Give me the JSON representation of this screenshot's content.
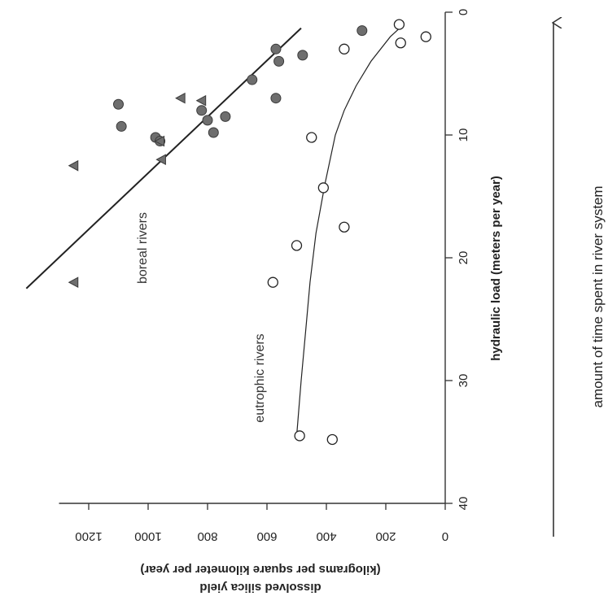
{
  "chart_data": {
    "type": "scatter",
    "orientation": "rotated 90 degrees clockwise",
    "x": {
      "label": "hydraulic load (meters per year)",
      "range": [
        0,
        40
      ],
      "ticks": [
        0,
        10,
        20,
        30,
        40
      ]
    },
    "y": {
      "label_line1": "dissolved silica yield",
      "label_line2": "(kilograms per square kilometer per year)",
      "range": [
        0,
        1300
      ],
      "ticks": [
        0,
        200,
        400,
        600,
        800,
        1000,
        1200
      ]
    },
    "series": [
      {
        "name": "boreal rivers",
        "marker": "filled-circle",
        "color": "#6e6e6e",
        "points": [
          [
            1.5,
            280
          ],
          [
            3.0,
            570
          ],
          [
            3.5,
            480
          ],
          [
            4.0,
            560
          ],
          [
            5.5,
            650
          ],
          [
            7.0,
            570
          ],
          [
            7.5,
            1100
          ],
          [
            8.0,
            820
          ],
          [
            8.5,
            740
          ],
          [
            8.8,
            800
          ],
          [
            9.3,
            1090
          ],
          [
            9.8,
            780
          ],
          [
            10.2,
            975
          ],
          [
            10.5,
            960
          ]
        ]
      },
      {
        "name": "boreal rivers",
        "marker": "filled-triangle",
        "color": "#6e6e6e",
        "points": [
          [
            7.0,
            890
          ],
          [
            7.2,
            820
          ],
          [
            10.5,
            960
          ],
          [
            12.0,
            955
          ],
          [
            12.5,
            1250
          ],
          [
            22.0,
            1250
          ]
        ]
      },
      {
        "name": "eutrophic rivers",
        "marker": "open-circle",
        "color": "#222222",
        "points": [
          [
            1.0,
            155
          ],
          [
            2.0,
            65
          ],
          [
            2.5,
            150
          ],
          [
            3.0,
            340
          ],
          [
            10.2,
            450
          ],
          [
            14.3,
            410
          ],
          [
            17.5,
            340
          ],
          [
            19.0,
            500
          ],
          [
            22.0,
            580
          ],
          [
            34.5,
            490
          ],
          [
            34.8,
            380
          ]
        ]
      }
    ],
    "fits": [
      {
        "series": "boreal rivers",
        "kind": "linear",
        "from": [
          1.3,
          485
        ],
        "to": [
          22.5,
          1410
        ]
      },
      {
        "series": "eutrophic rivers",
        "kind": "curve",
        "points": [
          [
            1.0,
            140
          ],
          [
            2.0,
            185
          ],
          [
            4.0,
            250
          ],
          [
            6.0,
            300
          ],
          [
            8.0,
            340
          ],
          [
            10.0,
            370
          ],
          [
            14.0,
            405
          ],
          [
            18.0,
            435
          ],
          [
            22.0,
            455
          ],
          [
            26.0,
            470
          ],
          [
            30.0,
            485
          ],
          [
            34.5,
            500
          ]
        ]
      }
    ],
    "annotations": {
      "boreal": "boreal rivers",
      "eutrophic": "eutrophic rivers"
    },
    "side_note": "amount of time spent in river system"
  }
}
